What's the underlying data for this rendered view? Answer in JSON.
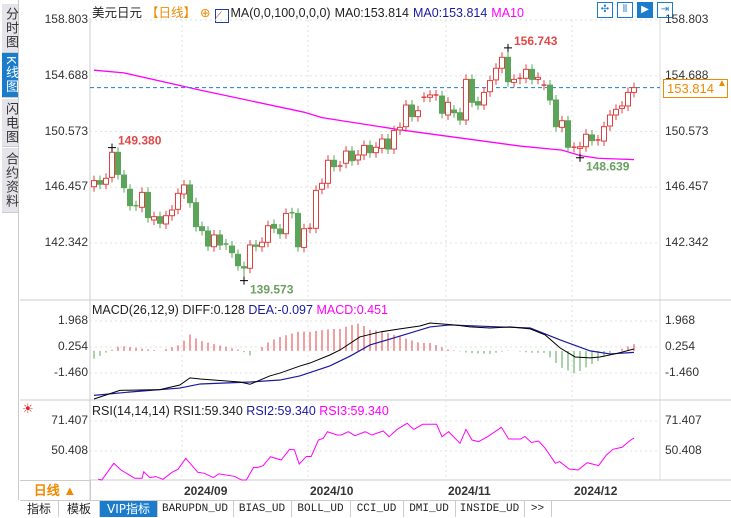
{
  "side_tabs": [
    {
      "label": "分时图",
      "selected": false
    },
    {
      "label": "K线图",
      "selected": true
    },
    {
      "label": "闪电图",
      "selected": false
    },
    {
      "label": "合约资料",
      "selected": false
    }
  ],
  "header": {
    "symbol": "美元日元",
    "period": "【日线】",
    "indicator": "MA(0,0,100,0,0,0)",
    "ma0_a": "MA0:153.814",
    "ma0_b": "MA0:153.814",
    "ma10": "MA10"
  },
  "toolbar_icons": [
    "crosshair-icon",
    "range-icon",
    "play-icon",
    "jump-end-icon"
  ],
  "colors": {
    "up": "#e04040",
    "down": "#5aa55a",
    "ma": "#ff00ff",
    "diff": "#000000",
    "dea": "#1a1aa0",
    "rsi": "#ff00ff",
    "last": "#1b7ccc",
    "accent": "#f08a00"
  },
  "price_axis": [
    "158.803",
    "154.688",
    "150.573",
    "146.457",
    "142.342"
  ],
  "last_price": "153.814",
  "macd_header": {
    "name": "MACD(26,12,9)",
    "diff": "DIFF:0.128",
    "dea": "DEA:-0.097",
    "macd": "MACD:0.451"
  },
  "macd_axis": [
    "1.968",
    "0.254",
    "-1.460"
  ],
  "rsi_header": {
    "name": "RSI(14,14,14)",
    "rsi1": "RSI1:59.340",
    "rsi2": "RSI2:59.340",
    "rsi3": "RSI3:59.340"
  },
  "rsi_axis": [
    "71.407",
    "50.408"
  ],
  "x_labels": [
    {
      "label": "2024/09",
      "bar": 15
    },
    {
      "label": "2024/10",
      "bar": 36
    },
    {
      "label": "2024/11",
      "bar": 59
    },
    {
      "label": "2024/12",
      "bar": 80
    }
  ],
  "period_button": "日线 ▲",
  "bottom_tabs": [
    {
      "label": "指标"
    },
    {
      "label": "模板"
    },
    {
      "label": "VIP指标",
      "selected": true
    },
    {
      "label": "BARUPDN_UD"
    },
    {
      "label": "BIAS_UD"
    },
    {
      "label": "BOLL_UD"
    },
    {
      "label": "CCI_UD"
    },
    {
      "label": "DMI_UD"
    },
    {
      "label": "INSIDE_UD"
    },
    {
      "label": ">>"
    }
  ],
  "chart_data": {
    "type": "candlestick",
    "title": "美元日元",
    "ylim": [
      138.5,
      159.5
    ],
    "candles_open_close": [
      [
        146.5,
        146.95
      ],
      [
        146.95,
        146.68
      ],
      [
        146.68,
        147.12
      ],
      [
        147.19,
        149.04
      ],
      [
        149.04,
        147.41
      ],
      [
        147.36,
        146.43
      ],
      [
        146.31,
        145.1
      ],
      [
        145.1,
        145.08
      ],
      [
        144.98,
        146.08
      ],
      [
        146.08,
        144.22
      ],
      [
        144.04,
        144.29
      ],
      [
        144.29,
        143.8
      ],
      [
        143.75,
        144.36
      ],
      [
        144.36,
        144.78
      ],
      [
        144.83,
        146.01
      ],
      [
        145.96,
        146.63
      ],
      [
        146.63,
        145.32
      ],
      [
        145.32,
        143.55
      ],
      [
        143.55,
        143.26
      ],
      [
        143.23,
        142.12
      ],
      [
        142.07,
        142.94
      ],
      [
        142.94,
        142.2
      ],
      [
        142.27,
        142.2
      ],
      [
        142.12,
        141.63
      ],
      [
        141.51,
        140.67
      ],
      [
        140.6,
        140.5
      ],
      [
        140.48,
        142.2
      ],
      [
        142.2,
        142.1
      ],
      [
        142.07,
        142.4
      ],
      [
        142.4,
        143.62
      ],
      [
        143.72,
        143.43
      ],
      [
        143.38,
        143.03
      ],
      [
        143.03,
        144.53
      ],
      [
        144.58,
        144.53
      ],
      [
        144.53,
        142.07
      ],
      [
        142.02,
        143.4
      ],
      [
        143.43,
        143.43
      ],
      [
        143.43,
        146.23
      ],
      [
        146.31,
        146.75
      ],
      [
        146.75,
        148.45
      ],
      [
        148.45,
        147.98
      ],
      [
        147.98,
        148.03
      ],
      [
        148.23,
        149.13
      ],
      [
        149.13,
        148.42
      ],
      [
        148.47,
        148.84
      ],
      [
        148.84,
        149.55
      ],
      [
        149.55,
        149.01
      ],
      [
        149.01,
        149.41
      ],
      [
        149.33,
        150.02
      ],
      [
        150.02,
        149.28
      ],
      [
        149.28,
        150.64
      ],
      [
        150.69,
        150.88
      ],
      [
        150.93,
        152.53
      ],
      [
        152.53,
        151.67
      ],
      [
        151.67,
        152.11
      ],
      [
        153.1,
        153.1
      ],
      [
        153.1,
        153.27
      ],
      [
        153.22,
        153.27
      ],
      [
        153.19,
        151.92
      ],
      [
        151.79,
        152.73
      ],
      [
        152.16,
        151.96
      ],
      [
        151.96,
        151.42
      ],
      [
        151.42,
        154.42
      ],
      [
        154.42,
        152.73
      ],
      [
        152.78,
        152.53
      ],
      [
        152.53,
        153.46
      ],
      [
        153.51,
        154.33
      ],
      [
        154.38,
        155.24
      ],
      [
        155.24,
        156.05
      ],
      [
        156.05,
        154.25
      ],
      [
        154.2,
        154.42
      ],
      [
        154.42,
        154.5
      ],
      [
        154.5,
        155.16
      ],
      [
        155.16,
        154.42
      ],
      [
        154.42,
        154.57
      ],
      [
        154.0,
        154.0
      ],
      [
        154.0,
        152.9
      ],
      [
        152.9,
        150.93
      ],
      [
        150.88,
        151.37
      ],
      [
        151.37,
        149.41
      ],
      [
        149.41,
        149.41
      ],
      [
        149.33,
        149.45
      ],
      [
        149.45,
        150.37
      ],
      [
        150.32,
        149.9
      ],
      [
        149.9,
        149.95
      ],
      [
        149.87,
        150.93
      ],
      [
        150.98,
        151.79
      ],
      [
        151.79,
        152.21
      ],
      [
        152.28,
        152.46
      ],
      [
        152.46,
        153.46
      ],
      [
        153.46,
        153.81
      ]
    ],
    "extremes": [
      {
        "bar": 3,
        "value": 149.38,
        "label": "149.380",
        "kind": "high"
      },
      {
        "bar": 25,
        "value": 139.573,
        "label": "139.573",
        "kind": "low"
      },
      {
        "bar": 69,
        "value": 156.743,
        "label": "156.743",
        "kind": "high"
      },
      {
        "bar": 81,
        "value": 148.639,
        "label": "148.639",
        "kind": "low"
      }
    ],
    "ma100": [
      [
        0,
        155.1
      ],
      [
        5,
        154.9
      ],
      [
        18,
        153.6
      ],
      [
        35,
        152.0
      ],
      [
        38,
        151.6
      ],
      [
        51,
        150.7
      ],
      [
        61,
        150.1
      ],
      [
        71,
        149.5
      ],
      [
        78,
        149.2
      ],
      [
        81,
        148.8
      ],
      [
        84,
        148.6
      ],
      [
        90,
        148.5
      ]
    ],
    "macd": {
      "ylim": [
        -3.24,
        3.02
      ],
      "diff": [
        [
          0,
          -3.19
        ],
        [
          4.3,
          -2.6
        ],
        [
          11,
          -2.55
        ],
        [
          14.3,
          -2.25
        ],
        [
          16,
          -1.78
        ],
        [
          17.7,
          -1.85
        ],
        [
          24.3,
          -2.05
        ],
        [
          26,
          -2.2
        ],
        [
          29.3,
          -1.65
        ],
        [
          31,
          -1.46
        ],
        [
          34.3,
          -1.0
        ],
        [
          36,
          -0.8
        ],
        [
          39.3,
          -0.27
        ],
        [
          41,
          0.06
        ],
        [
          44.3,
          0.92
        ],
        [
          47.7,
          1.25
        ],
        [
          51,
          1.45
        ],
        [
          54.3,
          1.64
        ],
        [
          56,
          1.84
        ],
        [
          60.2,
          1.71
        ],
        [
          62.7,
          1.58
        ],
        [
          66,
          1.51
        ],
        [
          69.3,
          1.58
        ],
        [
          72.7,
          1.45
        ],
        [
          75.2,
          1.05
        ],
        [
          77.7,
          0.19
        ],
        [
          80.2,
          -0.4
        ],
        [
          82.7,
          -0.46
        ],
        [
          84.3,
          -0.4
        ],
        [
          86.8,
          -0.2
        ],
        [
          90,
          0.128
        ]
      ],
      "dea": [
        [
          0,
          -2.93
        ],
        [
          6,
          -2.71
        ],
        [
          14.3,
          -2.45
        ],
        [
          17.7,
          -2.18
        ],
        [
          26,
          -2.05
        ],
        [
          31,
          -1.92
        ],
        [
          34.3,
          -1.65
        ],
        [
          39.3,
          -0.99
        ],
        [
          42.7,
          -0.34
        ],
        [
          46,
          0.39
        ],
        [
          51,
          0.98
        ],
        [
          56,
          1.58
        ],
        [
          59.3,
          1.71
        ],
        [
          67.7,
          1.58
        ],
        [
          72.7,
          1.51
        ],
        [
          77.7,
          0.72
        ],
        [
          82.7,
          0.0
        ],
        [
          86,
          -0.2
        ],
        [
          90,
          -0.097
        ]
      ]
    },
    "rsi": {
      "ylim": [
        28,
        75
      ],
      "values": [
        [
          0.7,
          30.6
        ],
        [
          1.3,
          30.1
        ],
        [
          3.3,
          41.8
        ],
        [
          4.5,
          37.1
        ],
        [
          6.8,
          31.3
        ],
        [
          8,
          31.3
        ],
        [
          8.3,
          35.9
        ],
        [
          9.3,
          31.8
        ],
        [
          10.3,
          32.5
        ],
        [
          11.5,
          30.6
        ],
        [
          13,
          35.5
        ],
        [
          14,
          37.6
        ],
        [
          15.3,
          45.3
        ],
        [
          17.3,
          35.5
        ],
        [
          18.4,
          34.8
        ],
        [
          19.9,
          31.8
        ],
        [
          20.8,
          34.4
        ],
        [
          23.4,
          32.7
        ],
        [
          24.6,
          30.1
        ],
        [
          25.4,
          30.1
        ],
        [
          26.6,
          39.0
        ],
        [
          27.2,
          38.8
        ],
        [
          28.2,
          40.2
        ],
        [
          29.4,
          46.4
        ],
        [
          31.2,
          44.1
        ],
        [
          32.6,
          51.6
        ],
        [
          33.4,
          51.2
        ],
        [
          34.2,
          41.3
        ],
        [
          35.4,
          46.6
        ],
        [
          36.2,
          46.6
        ],
        [
          37.4,
          58.1
        ],
        [
          38.2,
          59.3
        ],
        [
          38.9,
          63.9
        ],
        [
          40.5,
          61.6
        ],
        [
          41.2,
          61.6
        ],
        [
          42.4,
          63.9
        ],
        [
          43.5,
          61.1
        ],
        [
          45.2,
          63.9
        ],
        [
          46.3,
          61.6
        ],
        [
          48.2,
          64.4
        ],
        [
          49.2,
          60.4
        ],
        [
          50.5,
          65.5
        ],
        [
          52.2,
          69.8
        ],
        [
          53.3,
          65.5
        ],
        [
          54.8,
          69.1
        ],
        [
          57.1,
          69.1
        ],
        [
          58,
          60.4
        ],
        [
          59.1,
          63.9
        ],
        [
          61,
          55.8
        ],
        [
          62,
          65.5
        ],
        [
          63,
          58.1
        ],
        [
          64.1,
          57.0
        ],
        [
          65.6,
          60.4
        ],
        [
          67.9,
          67.0
        ],
        [
          69.1,
          58.8
        ],
        [
          71.1,
          58.8
        ],
        [
          71.8,
          60.6
        ],
        [
          72.9,
          56.4
        ],
        [
          74.1,
          57.4
        ],
        [
          75.2,
          52.3
        ],
        [
          76.9,
          41.8
        ],
        [
          77.6,
          43.0
        ],
        [
          79.2,
          37.8
        ],
        [
          80.7,
          37.1
        ],
        [
          82.2,
          42.2
        ],
        [
          84.1,
          40.2
        ],
        [
          85.4,
          47.6
        ],
        [
          86.5,
          51.6
        ],
        [
          88,
          53.0
        ],
        [
          88.9,
          56.2
        ],
        [
          89.7,
          58.8
        ],
        [
          90,
          59.34
        ]
      ]
    }
  }
}
